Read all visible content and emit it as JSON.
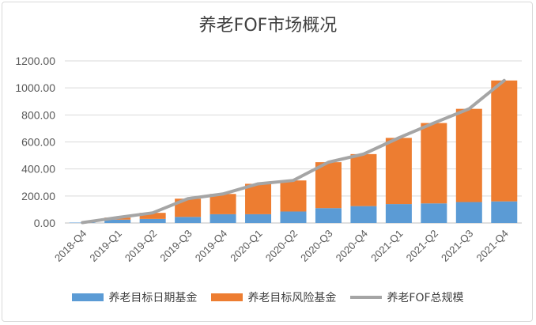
{
  "chart_data": {
    "type": "bar",
    "title": "养老FOF市场概况",
    "categories": [
      "2018-Q4",
      "2019-Q1",
      "2019-Q2",
      "2019-Q3",
      "2019-Q4",
      "2020-Q1",
      "2020-Q2",
      "2020-Q3",
      "2020-Q4",
      "2021-Q1",
      "2021-Q2",
      "2021-Q3",
      "2021-Q4"
    ],
    "y_ticks": [
      "0.00",
      "200.00",
      "400.00",
      "600.00",
      "800.00",
      "1000.00",
      "1200.00"
    ],
    "ylim": [
      0,
      1200
    ],
    "stacked": true,
    "grid": true,
    "legend_position": "bottom",
    "series": [
      {
        "name": "养老目标日期基金",
        "kind": "bar",
        "color": "#5b9bd5",
        "values": [
          3,
          25,
          30,
          45,
          65,
          65,
          85,
          110,
          125,
          140,
          145,
          155,
          160
        ]
      },
      {
        "name": "养老目标风险基金",
        "kind": "bar",
        "color": "#ed7d31",
        "values": [
          0,
          15,
          45,
          135,
          150,
          225,
          230,
          340,
          385,
          490,
          595,
          690,
          895
        ]
      },
      {
        "name": "养老FOF总规模",
        "kind": "line",
        "color": "#a5a5a5",
        "values": [
          3,
          40,
          75,
          180,
          215,
          290,
          315,
          450,
          510,
          630,
          740,
          845,
          1055
        ]
      }
    ]
  }
}
